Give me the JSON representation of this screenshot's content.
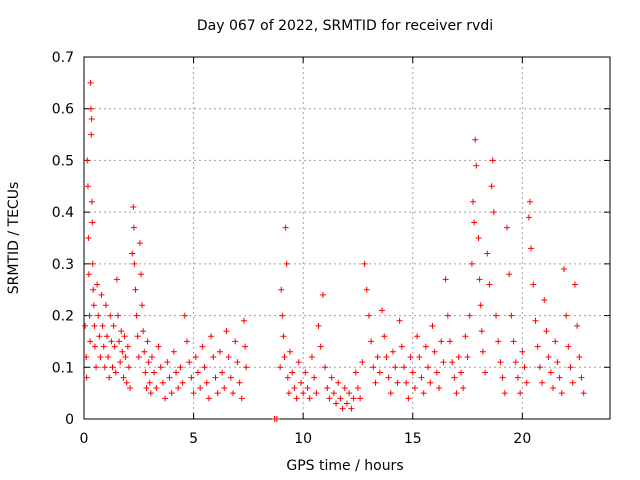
{
  "chart_data": {
    "type": "scatter",
    "title": "Day 067 of 2022, SRMTID for receiver rvdi",
    "xlabel": "GPS time / hours",
    "ylabel": "SRMTID / TECUs",
    "xlim": [
      0,
      24
    ],
    "ylim": [
      0,
      0.7
    ],
    "x_ticks": [
      0,
      5,
      10,
      15,
      20
    ],
    "y_ticks": [
      0,
      0.1,
      0.2,
      0.3,
      0.4,
      0.5,
      0.6,
      0.7
    ],
    "x_tick_labels": [
      "0",
      "5",
      "10",
      "15",
      "20"
    ],
    "y_tick_labels": [
      "0",
      "0.1",
      "0.2",
      "0.3",
      "0.4",
      "0.5",
      "0.6",
      "0.7"
    ],
    "grid": true,
    "marker": "+",
    "marker_color": "#ff0000",
    "series": [
      {
        "name": "SRMTID",
        "points": [
          [
            0.05,
            0.18
          ],
          [
            0.1,
            0.12
          ],
          [
            0.12,
            0.08
          ],
          [
            0.15,
            0.5
          ],
          [
            0.18,
            0.45
          ],
          [
            0.2,
            0.35
          ],
          [
            0.22,
            0.28
          ],
          [
            0.25,
            0.2
          ],
          [
            0.28,
            0.15
          ],
          [
            0.3,
            0.65
          ],
          [
            0.32,
            0.6
          ],
          [
            0.33,
            0.55
          ],
          [
            0.35,
            0.58
          ],
          [
            0.36,
            0.42
          ],
          [
            0.38,
            0.38
          ],
          [
            0.4,
            0.3
          ],
          [
            0.42,
            0.25
          ],
          [
            0.45,
            0.22
          ],
          [
            0.48,
            0.18
          ],
          [
            0.5,
            0.14
          ],
          [
            0.55,
            0.1
          ],
          [
            0.6,
            0.26
          ],
          [
            0.65,
            0.2
          ],
          [
            0.7,
            0.16
          ],
          [
            0.75,
            0.12
          ],
          [
            0.8,
            0.24
          ],
          [
            0.85,
            0.18
          ],
          [
            0.9,
            0.14
          ],
          [
            0.95,
            0.1
          ],
          [
            1.0,
            0.22
          ],
          [
            1.05,
            0.16
          ],
          [
            1.1,
            0.12
          ],
          [
            1.15,
            0.08
          ],
          [
            1.2,
            0.2
          ],
          [
            1.25,
            0.15
          ],
          [
            1.3,
            0.1
          ],
          [
            1.35,
            0.18
          ],
          [
            1.4,
            0.14
          ],
          [
            1.45,
            0.09
          ],
          [
            1.5,
            0.27
          ],
          [
            1.55,
            0.2
          ],
          [
            1.6,
            0.15
          ],
          [
            1.65,
            0.11
          ],
          [
            1.7,
            0.17
          ],
          [
            1.75,
            0.13
          ],
          [
            1.8,
            0.08
          ],
          [
            1.85,
            0.16
          ],
          [
            1.9,
            0.12
          ],
          [
            1.95,
            0.07
          ],
          [
            2.0,
            0.14
          ],
          [
            2.05,
            0.1
          ],
          [
            2.1,
            0.06
          ],
          [
            2.2,
            0.32
          ],
          [
            2.25,
            0.41
          ],
          [
            2.28,
            0.37
          ],
          [
            2.3,
            0.3
          ],
          [
            2.35,
            0.25
          ],
          [
            2.4,
            0.2
          ],
          [
            2.45,
            0.16
          ],
          [
            2.5,
            0.12
          ],
          [
            2.55,
            0.34
          ],
          [
            2.6,
            0.28
          ],
          [
            2.65,
            0.22
          ],
          [
            2.7,
            0.17
          ],
          [
            2.75,
            0.13
          ],
          [
            2.8,
            0.09
          ],
          [
            2.85,
            0.06
          ],
          [
            2.9,
            0.15
          ],
          [
            2.95,
            0.11
          ],
          [
            3.0,
            0.07
          ],
          [
            3.05,
            0.05
          ],
          [
            3.1,
            0.12
          ],
          [
            3.2,
            0.09
          ],
          [
            3.3,
            0.06
          ],
          [
            3.4,
            0.14
          ],
          [
            3.5,
            0.1
          ],
          [
            3.6,
            0.07
          ],
          [
            3.7,
            0.04
          ],
          [
            3.8,
            0.11
          ],
          [
            3.9,
            0.08
          ],
          [
            4.0,
            0.05
          ],
          [
            4.1,
            0.13
          ],
          [
            4.2,
            0.09
          ],
          [
            4.3,
            0.06
          ],
          [
            4.4,
            0.1
          ],
          [
            4.5,
            0.07
          ],
          [
            4.6,
            0.2
          ],
          [
            4.7,
            0.15
          ],
          [
            4.8,
            0.11
          ],
          [
            4.9,
            0.08
          ],
          [
            5.0,
            0.05
          ],
          [
            5.1,
            0.12
          ],
          [
            5.2,
            0.09
          ],
          [
            5.3,
            0.06
          ],
          [
            5.4,
            0.14
          ],
          [
            5.5,
            0.1
          ],
          [
            5.6,
            0.07
          ],
          [
            5.7,
            0.04
          ],
          [
            5.8,
            0.16
          ],
          [
            5.9,
            0.12
          ],
          [
            6.0,
            0.08
          ],
          [
            6.1,
            0.05
          ],
          [
            6.2,
            0.13
          ],
          [
            6.3,
            0.09
          ],
          [
            6.4,
            0.06
          ],
          [
            6.5,
            0.17
          ],
          [
            6.6,
            0.12
          ],
          [
            6.7,
            0.08
          ],
          [
            6.8,
            0.05
          ],
          [
            6.9,
            0.15
          ],
          [
            7.0,
            0.11
          ],
          [
            7.1,
            0.07
          ],
          [
            7.2,
            0.04
          ],
          [
            7.3,
            0.19
          ],
          [
            7.35,
            0.14
          ],
          [
            7.4,
            0.1
          ],
          [
            8.7,
            0.0
          ],
          [
            8.8,
            0.0
          ],
          [
            8.95,
            0.1
          ],
          [
            9.0,
            0.25
          ],
          [
            9.05,
            0.2
          ],
          [
            9.1,
            0.16
          ],
          [
            9.15,
            0.12
          ],
          [
            9.2,
            0.37
          ],
          [
            9.25,
            0.3
          ],
          [
            9.3,
            0.08
          ],
          [
            9.35,
            0.05
          ],
          [
            9.4,
            0.13
          ],
          [
            9.5,
            0.09
          ],
          [
            9.6,
            0.06
          ],
          [
            9.7,
            0.04
          ],
          [
            9.8,
            0.11
          ],
          [
            9.9,
            0.07
          ],
          [
            10.0,
            0.05
          ],
          [
            10.1,
            0.09
          ],
          [
            10.2,
            0.06
          ],
          [
            10.3,
            0.04
          ],
          [
            10.4,
            0.12
          ],
          [
            10.5,
            0.08
          ],
          [
            10.6,
            0.05
          ],
          [
            10.7,
            0.18
          ],
          [
            10.8,
            0.14
          ],
          [
            10.9,
            0.24
          ],
          [
            11.0,
            0.1
          ],
          [
            11.1,
            0.06
          ],
          [
            11.2,
            0.04
          ],
          [
            11.3,
            0.08
          ],
          [
            11.4,
            0.05
          ],
          [
            11.5,
            0.03
          ],
          [
            11.6,
            0.07
          ],
          [
            11.7,
            0.04
          ],
          [
            11.8,
            0.02
          ],
          [
            11.9,
            0.06
          ],
          [
            12.0,
            0.03
          ],
          [
            12.1,
            0.05
          ],
          [
            12.2,
            0.02
          ],
          [
            12.3,
            0.04
          ],
          [
            12.4,
            0.09
          ],
          [
            12.5,
            0.06
          ],
          [
            12.6,
            0.04
          ],
          [
            12.7,
            0.11
          ],
          [
            12.8,
            0.3
          ],
          [
            12.9,
            0.25
          ],
          [
            13.0,
            0.2
          ],
          [
            13.1,
            0.15
          ],
          [
            13.2,
            0.1
          ],
          [
            13.3,
            0.07
          ],
          [
            13.4,
            0.12
          ],
          [
            13.5,
            0.09
          ],
          [
            13.6,
            0.21
          ],
          [
            13.7,
            0.16
          ],
          [
            13.8,
            0.12
          ],
          [
            13.9,
            0.08
          ],
          [
            14.0,
            0.05
          ],
          [
            14.1,
            0.13
          ],
          [
            14.2,
            0.1
          ],
          [
            14.3,
            0.07
          ],
          [
            14.4,
            0.19
          ],
          [
            14.5,
            0.14
          ],
          [
            14.6,
            0.1
          ],
          [
            14.7,
            0.07
          ],
          [
            14.8,
            0.04
          ],
          [
            14.9,
            0.12
          ],
          [
            15.0,
            0.09
          ],
          [
            15.1,
            0.06
          ],
          [
            15.2,
            0.16
          ],
          [
            15.3,
            0.12
          ],
          [
            15.4,
            0.08
          ],
          [
            15.5,
            0.05
          ],
          [
            15.6,
            0.14
          ],
          [
            15.7,
            0.1
          ],
          [
            15.8,
            0.07
          ],
          [
            15.9,
            0.18
          ],
          [
            16.0,
            0.13
          ],
          [
            16.1,
            0.09
          ],
          [
            16.2,
            0.06
          ],
          [
            16.3,
            0.15
          ],
          [
            16.4,
            0.11
          ],
          [
            16.5,
            0.27
          ],
          [
            16.6,
            0.2
          ],
          [
            16.7,
            0.15
          ],
          [
            16.8,
            0.11
          ],
          [
            16.9,
            0.08
          ],
          [
            17.0,
            0.05
          ],
          [
            17.1,
            0.12
          ],
          [
            17.2,
            0.09
          ],
          [
            17.3,
            0.06
          ],
          [
            17.4,
            0.16
          ],
          [
            17.5,
            0.12
          ],
          [
            17.6,
            0.2
          ],
          [
            17.7,
            0.3
          ],
          [
            17.75,
            0.42
          ],
          [
            17.8,
            0.38
          ],
          [
            17.85,
            0.54
          ],
          [
            17.9,
            0.49
          ],
          [
            18.0,
            0.35
          ],
          [
            18.05,
            0.27
          ],
          [
            18.1,
            0.22
          ],
          [
            18.15,
            0.17
          ],
          [
            18.2,
            0.13
          ],
          [
            18.3,
            0.09
          ],
          [
            18.4,
            0.32
          ],
          [
            18.5,
            0.26
          ],
          [
            18.6,
            0.45
          ],
          [
            18.65,
            0.5
          ],
          [
            18.7,
            0.4
          ],
          [
            18.8,
            0.2
          ],
          [
            18.9,
            0.15
          ],
          [
            19.0,
            0.11
          ],
          [
            19.1,
            0.08
          ],
          [
            19.2,
            0.05
          ],
          [
            19.3,
            0.37
          ],
          [
            19.4,
            0.28
          ],
          [
            19.5,
            0.2
          ],
          [
            19.6,
            0.15
          ],
          [
            19.7,
            0.11
          ],
          [
            19.8,
            0.08
          ],
          [
            19.9,
            0.05
          ],
          [
            20.0,
            0.13
          ],
          [
            20.1,
            0.1
          ],
          [
            20.2,
            0.07
          ],
          [
            20.3,
            0.39
          ],
          [
            20.35,
            0.42
          ],
          [
            20.4,
            0.33
          ],
          [
            20.5,
            0.26
          ],
          [
            20.6,
            0.19
          ],
          [
            20.7,
            0.14
          ],
          [
            20.8,
            0.1
          ],
          [
            20.9,
            0.07
          ],
          [
            21.0,
            0.23
          ],
          [
            21.1,
            0.17
          ],
          [
            21.2,
            0.12
          ],
          [
            21.3,
            0.09
          ],
          [
            21.4,
            0.06
          ],
          [
            21.5,
            0.15
          ],
          [
            21.6,
            0.11
          ],
          [
            21.7,
            0.08
          ],
          [
            21.8,
            0.05
          ],
          [
            21.9,
            0.29
          ],
          [
            22.0,
            0.2
          ],
          [
            22.1,
            0.14
          ],
          [
            22.2,
            0.1
          ],
          [
            22.3,
            0.07
          ],
          [
            22.4,
            0.26
          ],
          [
            22.5,
            0.18
          ],
          [
            22.6,
            0.12
          ],
          [
            22.7,
            0.08
          ],
          [
            22.8,
            0.05
          ]
        ]
      }
    ]
  }
}
